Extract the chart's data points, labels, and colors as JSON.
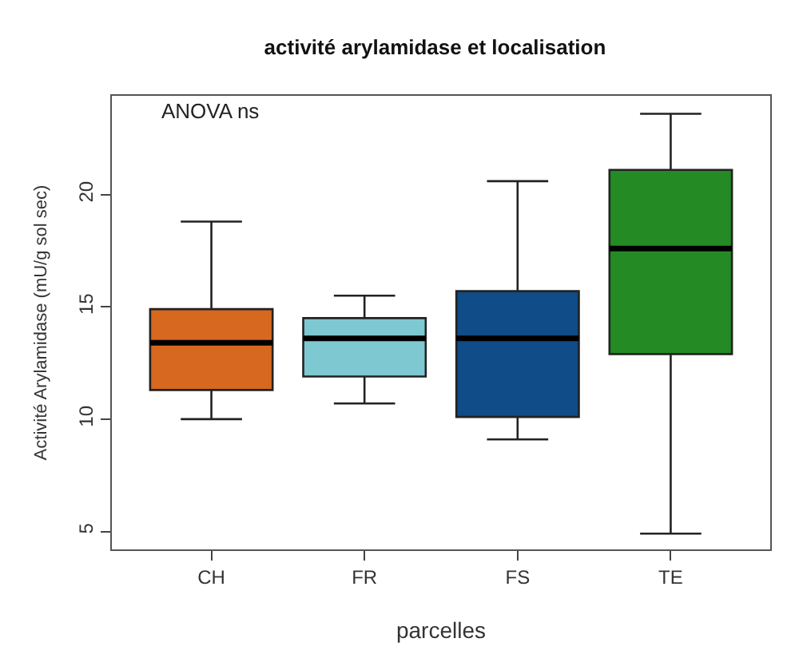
{
  "chart_data": {
    "type": "box",
    "title": "activité arylamidase et localisation",
    "xlabel": "parcelles",
    "ylabel": "Activité Arylamidase (mU/g sol sec)",
    "categories": [
      "CH",
      "FR",
      "FS",
      "TE"
    ],
    "colors": [
      "#d6681f",
      "#7ec8d2",
      "#0f4c88",
      "#238a24"
    ],
    "boxes": [
      {
        "low": 10.0,
        "q1": 11.3,
        "median": 13.4,
        "q3": 14.9,
        "high": 18.8
      },
      {
        "low": 10.7,
        "q1": 11.9,
        "median": 13.6,
        "q3": 14.5,
        "high": 15.5
      },
      {
        "low": 9.1,
        "q1": 10.1,
        "median": 13.6,
        "q3": 15.7,
        "high": 20.6
      },
      {
        "low": 4.9,
        "q1": 12.9,
        "median": 17.6,
        "q3": 21.1,
        "high": 23.6
      }
    ],
    "ylim": [
      4.2,
      24.4
    ],
    "yticks": [
      5,
      10,
      15,
      20
    ],
    "grid": false,
    "annotations": [
      "ANOVA ns"
    ]
  }
}
